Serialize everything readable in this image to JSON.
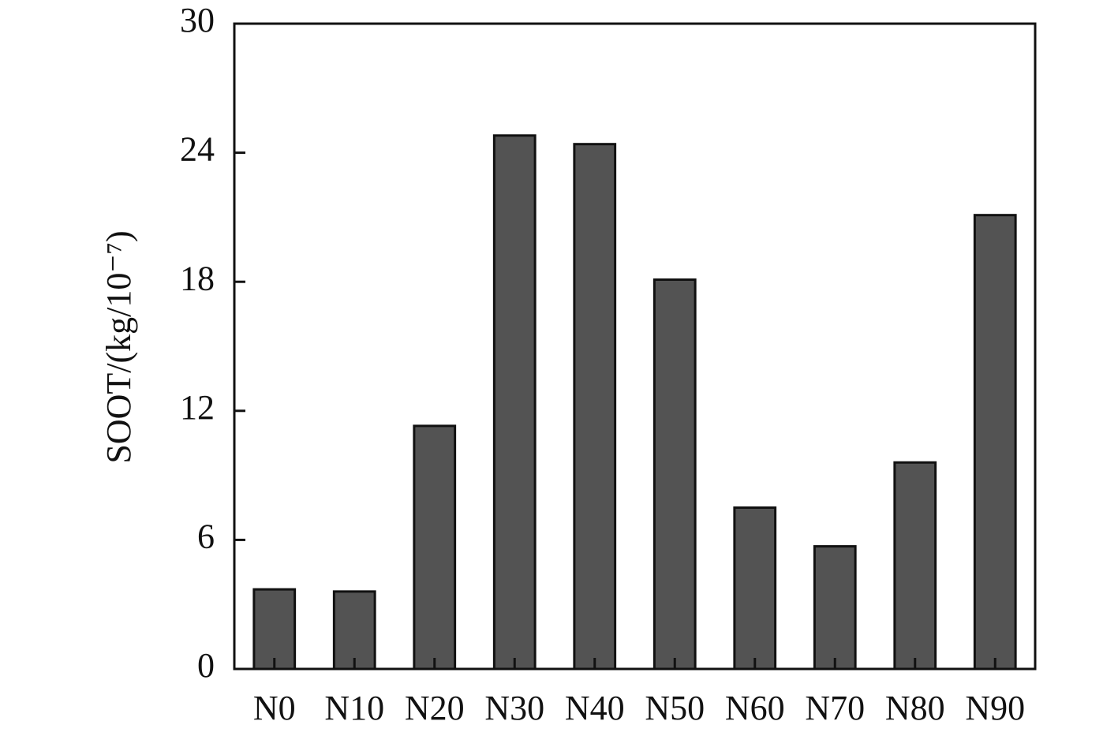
{
  "chart_data": {
    "type": "bar",
    "y_label": "SOOT/(kg/10⁻⁷)",
    "categories": [
      "N0",
      "N10",
      "N20",
      "N30",
      "N40",
      "N50",
      "N60",
      "N70",
      "N80",
      "N90"
    ],
    "values": [
      3.7,
      3.6,
      11.3,
      24.8,
      24.4,
      18.1,
      7.5,
      5.7,
      9.6,
      21.1
    ],
    "color": "#535353",
    "ylim": [
      0,
      30
    ],
    "yticks": [
      0,
      6,
      12,
      18,
      24,
      30
    ],
    "grid": false
  }
}
